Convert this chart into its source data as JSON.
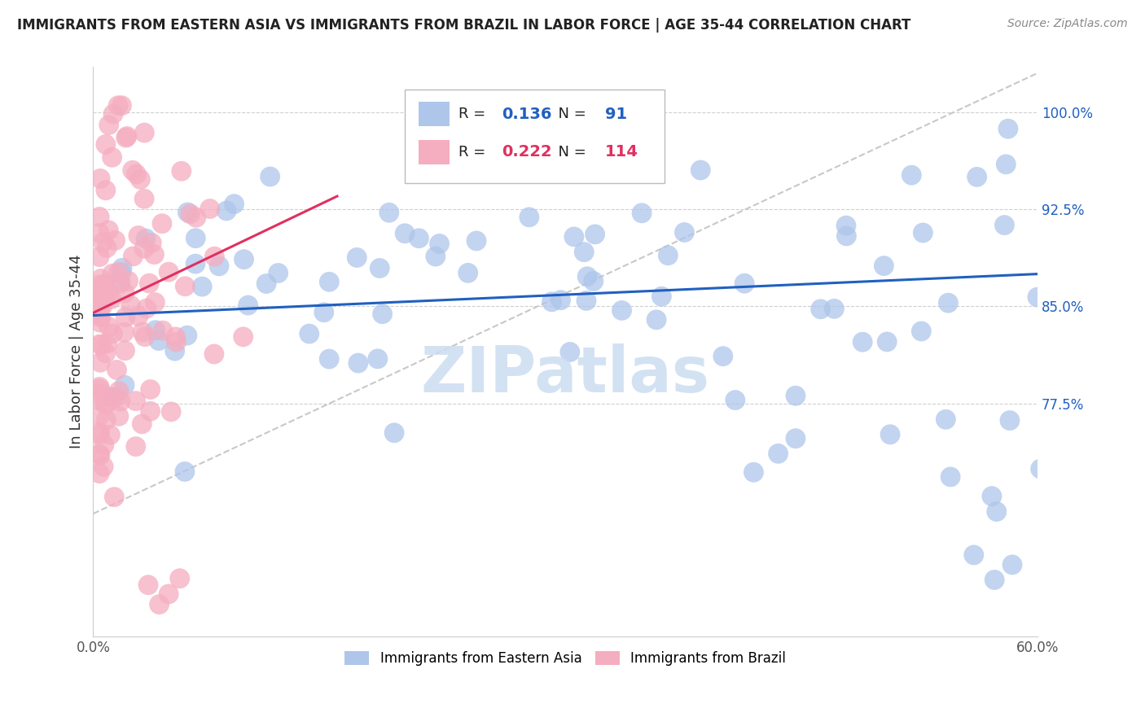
{
  "title": "IMMIGRANTS FROM EASTERN ASIA VS IMMIGRANTS FROM BRAZIL IN LABOR FORCE | AGE 35-44 CORRELATION CHART",
  "source": "Source: ZipAtlas.com",
  "ylabel": "In Labor Force | Age 35-44",
  "xlim": [
    0.0,
    0.6
  ],
  "ylim": [
    0.595,
    1.035
  ],
  "ytick_positions": [
    0.775,
    0.85,
    0.925,
    1.0
  ],
  "ytick_labels": [
    "77.5%",
    "85.0%",
    "92.5%",
    "100.0%"
  ],
  "R_blue": 0.136,
  "N_blue": 91,
  "R_pink": 0.222,
  "N_pink": 114,
  "legend_label_blue": "Immigrants from Eastern Asia",
  "legend_label_pink": "Immigrants from Brazil",
  "blue_color": "#aec6ea",
  "pink_color": "#f5adc0",
  "blue_line_color": "#2060c0",
  "pink_line_color": "#e03060",
  "ref_line_color": "#c8c8c8",
  "watermark_color": "#ccddf0",
  "background_color": "#ffffff",
  "grid_color": "#d0d0d0",
  "title_color": "#222222",
  "source_color": "#888888",
  "ytick_color": "#2060c0",
  "xtick_color": "#555555"
}
